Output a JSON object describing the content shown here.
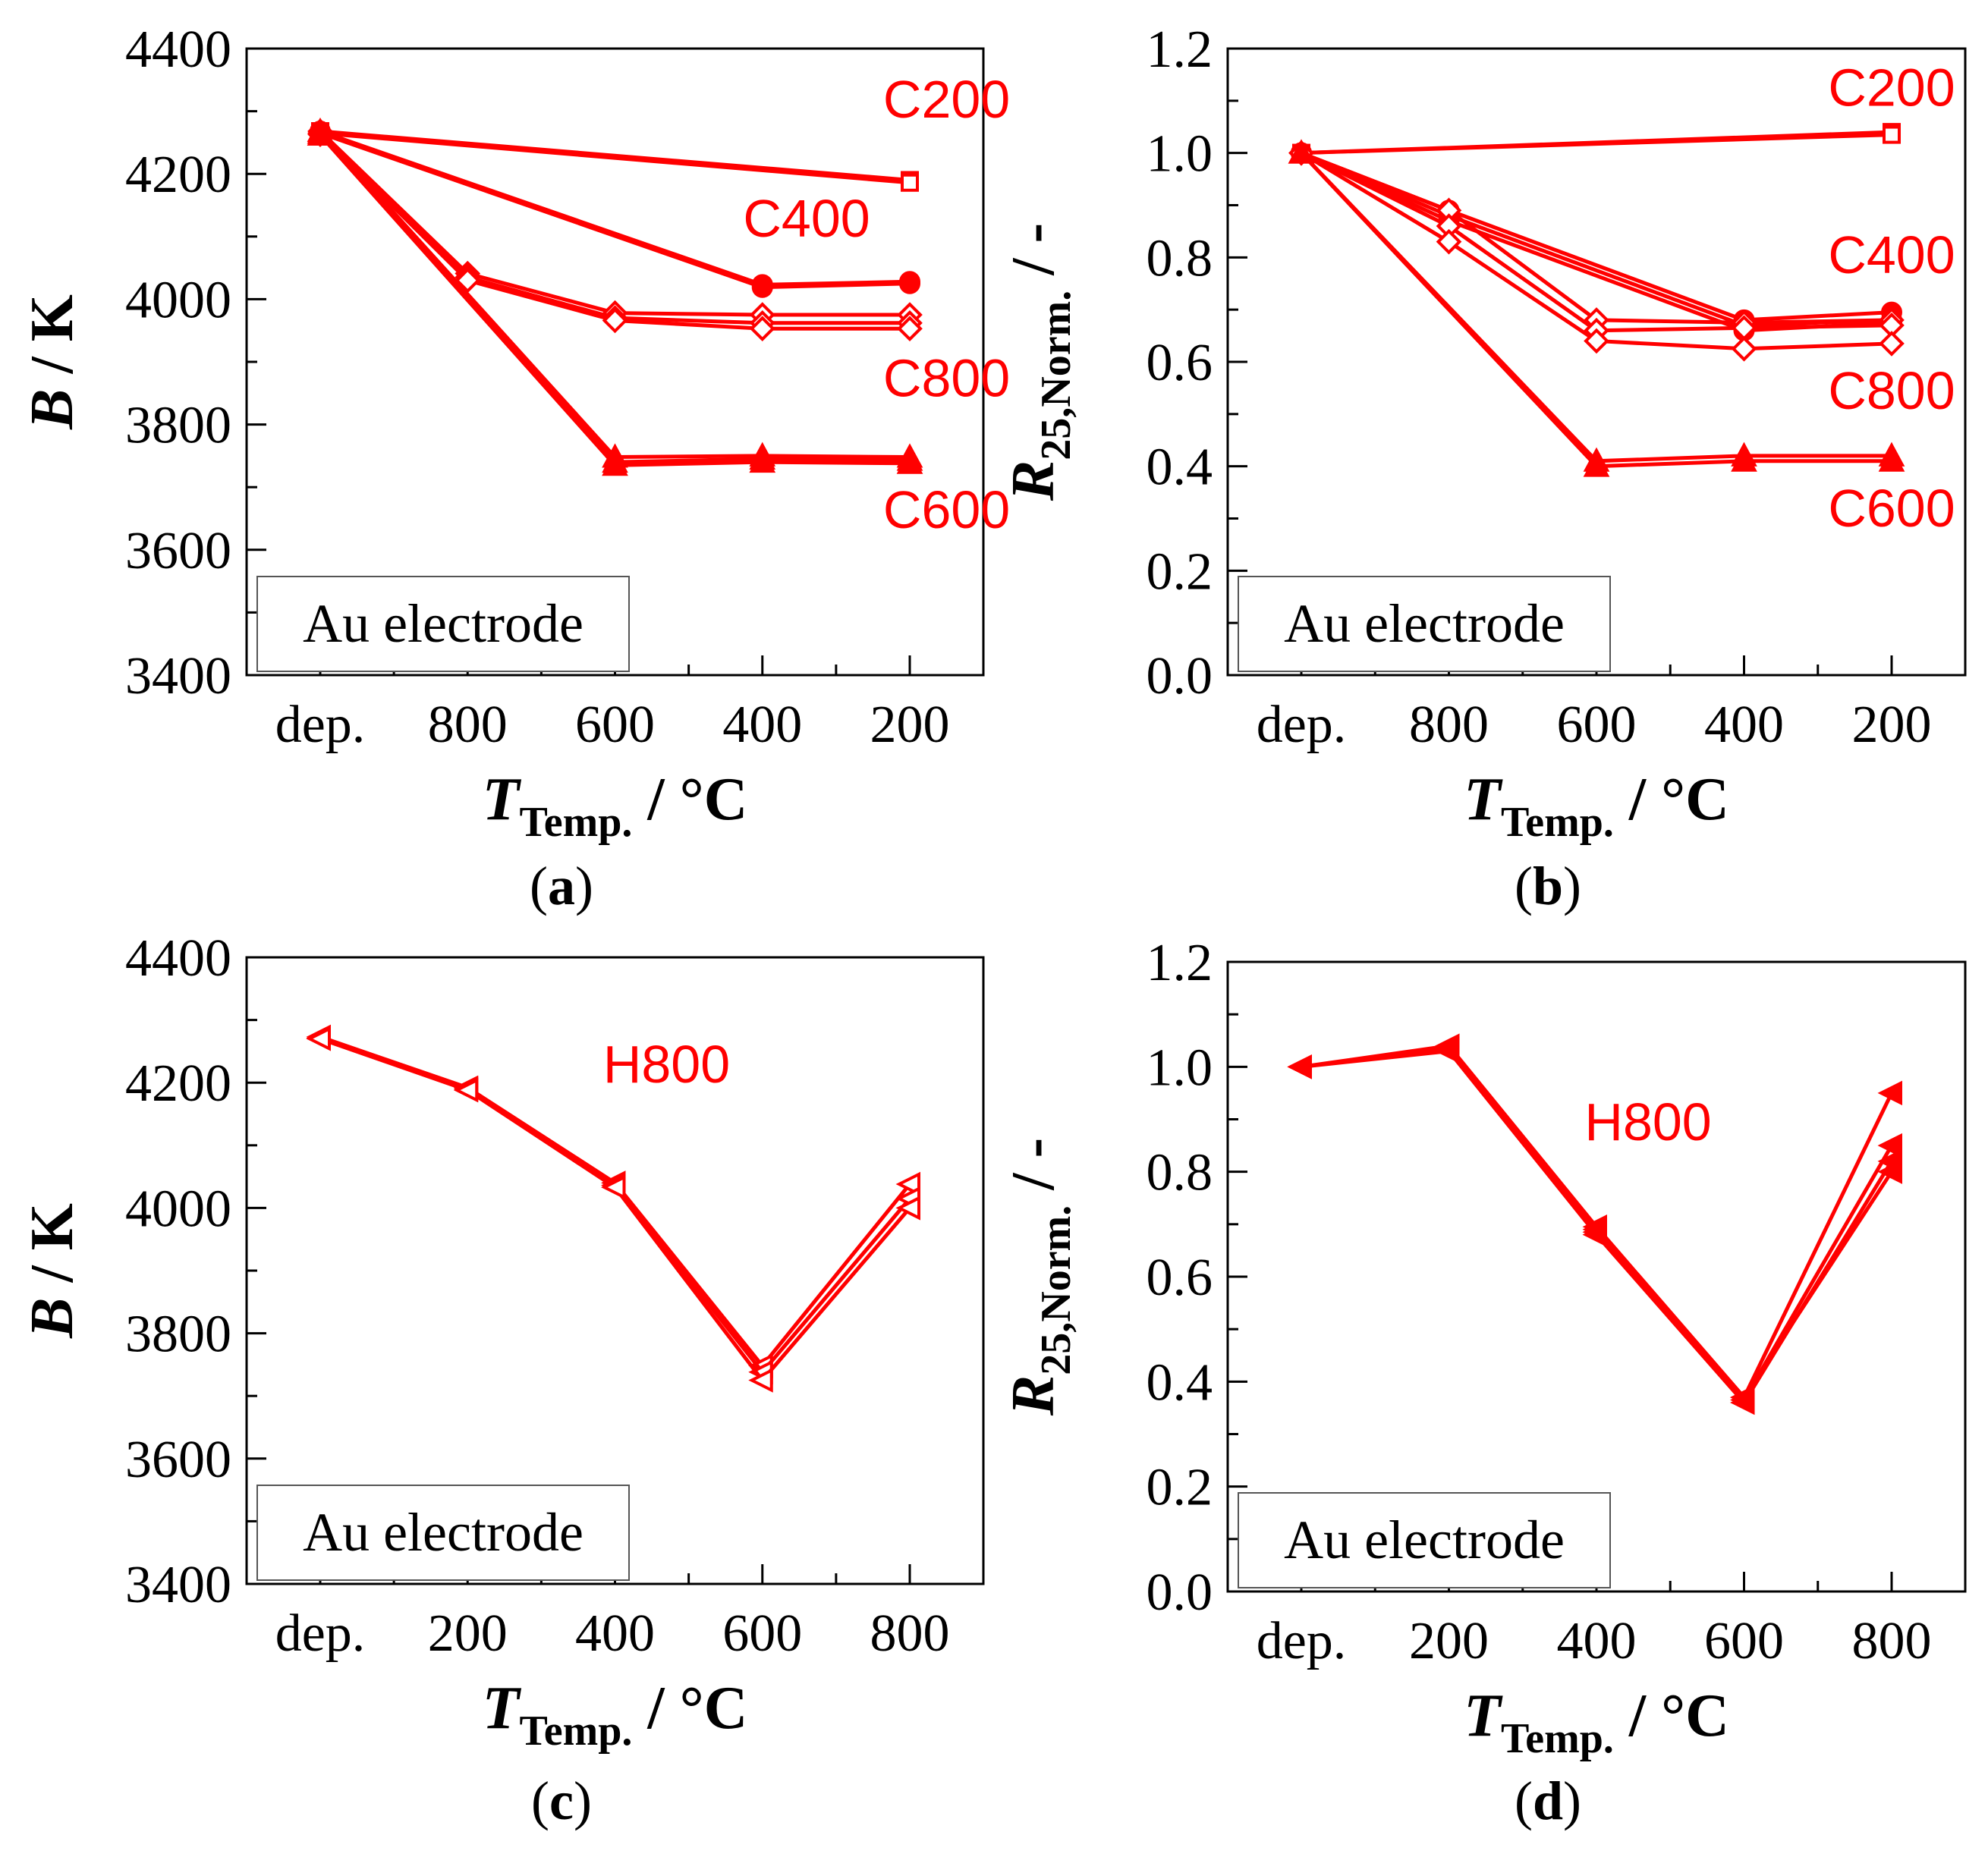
{
  "figure": {
    "colors": {
      "series": "#ff0000",
      "axis": "#000000"
    }
  },
  "chart_data": [
    {
      "panel": "a",
      "caption_letter": "a",
      "type": "line",
      "categories": [
        "dep.",
        "800",
        "600",
        "400",
        "200"
      ],
      "xlabel": {
        "main": "T",
        "sub": "Temp.",
        "unit": " / °C"
      },
      "ylabel": {
        "main": "B",
        "unit": " / K"
      },
      "ylim": [
        3400,
        4400
      ],
      "yticks": [
        "3400",
        "3600",
        "3800",
        "4000",
        "4200",
        "4400"
      ],
      "annotation_box": "Au electrode",
      "series": [
        {
          "name": "C200",
          "marker": "square-open",
          "values": [
            4268,
            null,
            null,
            null,
            4190
          ]
        },
        {
          "name": "C200",
          "marker": "square-open",
          "values": [
            4265,
            null,
            null,
            null,
            4186
          ]
        },
        {
          "name": "C400",
          "marker": "circle-filled",
          "values": [
            4268,
            null,
            null,
            4023,
            4028
          ]
        },
        {
          "name": "C400",
          "marker": "circle-filled",
          "values": [
            4265,
            null,
            null,
            4019,
            4025
          ]
        },
        {
          "name": "C800",
          "marker": "diamond-open",
          "values": [
            4268,
            4041,
            3978,
            3975,
            3975
          ]
        },
        {
          "name": "C800",
          "marker": "diamond-open",
          "values": [
            4265,
            4035,
            3970,
            3962,
            3962
          ]
        },
        {
          "name": "C800",
          "marker": "diamond-open",
          "values": [
            4263,
            4030,
            3966,
            3953,
            3953
          ]
        },
        {
          "name": "C600",
          "marker": "triangle-filled",
          "values": [
            4268,
            null,
            3748,
            3750,
            3748
          ]
        },
        {
          "name": "C600",
          "marker": "triangle-filled",
          "values": [
            4265,
            null,
            3740,
            3745,
            3743
          ]
        },
        {
          "name": "C600",
          "marker": "triangle-filled",
          "values": [
            4262,
            null,
            3735,
            3740,
            3738
          ]
        }
      ],
      "labels": [
        {
          "text": "C200",
          "x": 4.25,
          "y": 4290
        },
        {
          "text": "C400",
          "x": 3.3,
          "y": 4100
        },
        {
          "text": "C800",
          "x": 4.25,
          "y": 3845
        },
        {
          "text": "C600",
          "x": 4.25,
          "y": 3635
        }
      ]
    },
    {
      "panel": "b",
      "caption_letter": "b",
      "type": "line",
      "categories": [
        "dep.",
        "800",
        "600",
        "400",
        "200"
      ],
      "xlabel": {
        "main": "T",
        "sub": "Temp.",
        "unit": " / °C"
      },
      "ylabel": {
        "main": "R",
        "sub": "25,Norm.",
        "unit": " / -"
      },
      "ylim": [
        0.0,
        1.2
      ],
      "yticks": [
        "0.0",
        "0.2",
        "0.4",
        "0.6",
        "0.8",
        "1.0",
        "1.2"
      ],
      "annotation_box": "Au electrode",
      "series": [
        {
          "name": "C200",
          "marker": "square-open",
          "values": [
            1.0,
            null,
            null,
            null,
            1.04
          ]
        },
        {
          "name": "C200",
          "marker": "square-open",
          "values": [
            1.0,
            null,
            null,
            null,
            1.035
          ]
        },
        {
          "name": "C400",
          "marker": "circle-filled",
          "values": [
            1.0,
            0.89,
            null,
            0.68,
            0.695
          ]
        },
        {
          "name": "C400",
          "marker": "circle-filled",
          "values": [
            1.0,
            0.88,
            null,
            0.67,
            0.68
          ]
        },
        {
          "name": "C400",
          "marker": "circle-filled",
          "values": [
            1.0,
            0.87,
            null,
            0.66,
            0.675
          ]
        },
        {
          "name": "C800",
          "marker": "diamond-open",
          "values": [
            1.0,
            0.89,
            0.68,
            0.675,
            0.68
          ]
        },
        {
          "name": "C800",
          "marker": "diamond-open",
          "values": [
            1.0,
            0.86,
            0.66,
            0.665,
            0.67
          ]
        },
        {
          "name": "C800",
          "marker": "diamond-open",
          "values": [
            1.0,
            0.83,
            0.64,
            0.625,
            0.635
          ]
        },
        {
          "name": "C600",
          "marker": "triangle-filled",
          "values": [
            1.0,
            null,
            0.41,
            0.42,
            0.42
          ]
        },
        {
          "name": "C600",
          "marker": "triangle-filled",
          "values": [
            1.0,
            null,
            0.4,
            0.41,
            0.41
          ]
        }
      ],
      "labels": [
        {
          "text": "C200",
          "x": 4.0,
          "y": 1.09
        },
        {
          "text": "C400",
          "x": 4.0,
          "y": 0.77
        },
        {
          "text": "C800",
          "x": 4.0,
          "y": 0.51
        },
        {
          "text": "C600",
          "x": 4.0,
          "y": 0.285
        }
      ]
    },
    {
      "panel": "c",
      "caption_letter": "c",
      "type": "line",
      "categories": [
        "dep.",
        "200",
        "400",
        "600",
        "800"
      ],
      "xlabel": {
        "main": "T",
        "sub": "Temp.",
        "unit": " / °C"
      },
      "ylabel": {
        "main": "B",
        "unit": " / K"
      },
      "ylim": [
        3400,
        4400
      ],
      "yticks": [
        "3400",
        "3600",
        "3800",
        "4000",
        "4200",
        "4400"
      ],
      "annotation_box": "Au electrode",
      "series": [
        {
          "name": "H800",
          "marker": "triangle-left-open",
          "values": [
            4273,
            4192,
            4040,
            3748,
            4038
          ]
        },
        {
          "name": "H800",
          "marker": "triangle-left-open",
          "values": [
            4271,
            4190,
            4036,
            3738,
            4015
          ]
        },
        {
          "name": "H800",
          "marker": "triangle-left-open",
          "values": [
            4270,
            4188,
            4033,
            3725,
            4000
          ]
        }
      ],
      "labels": [
        {
          "text": "H800",
          "x": 2.35,
          "y": 4200
        }
      ]
    },
    {
      "panel": "d",
      "caption_letter": "d",
      "type": "line",
      "categories": [
        "dep.",
        "200",
        "400",
        "600",
        "800"
      ],
      "xlabel": {
        "main": "T",
        "sub": "Temp.",
        "unit": " / °C"
      },
      "ylabel": {
        "main": "R",
        "sub": "25,Norm.",
        "unit": " / -"
      },
      "ylim": [
        0.0,
        1.2
      ],
      "yticks": [
        "0.0",
        "0.2",
        "0.4",
        "0.6",
        "0.8",
        "1.0",
        "1.2"
      ],
      "annotation_box": "Au electrode",
      "series": [
        {
          "name": "H800",
          "marker": "triangle-left-filled",
          "values": [
            1.0,
            1.04,
            0.695,
            0.37,
            0.95
          ]
        },
        {
          "name": "H800",
          "marker": "triangle-left-filled",
          "values": [
            1.0,
            1.035,
            0.685,
            0.365,
            0.85
          ]
        },
        {
          "name": "H800",
          "marker": "triangle-left-filled",
          "values": [
            1.0,
            1.03,
            0.68,
            0.36,
            0.82
          ]
        },
        {
          "name": "H800",
          "marker": "triangle-left-filled",
          "values": [
            1.0,
            1.035,
            0.69,
            0.37,
            0.8
          ]
        }
      ],
      "labels": [
        {
          "text": "H800",
          "x": 2.35,
          "y": 0.86
        }
      ]
    }
  ]
}
